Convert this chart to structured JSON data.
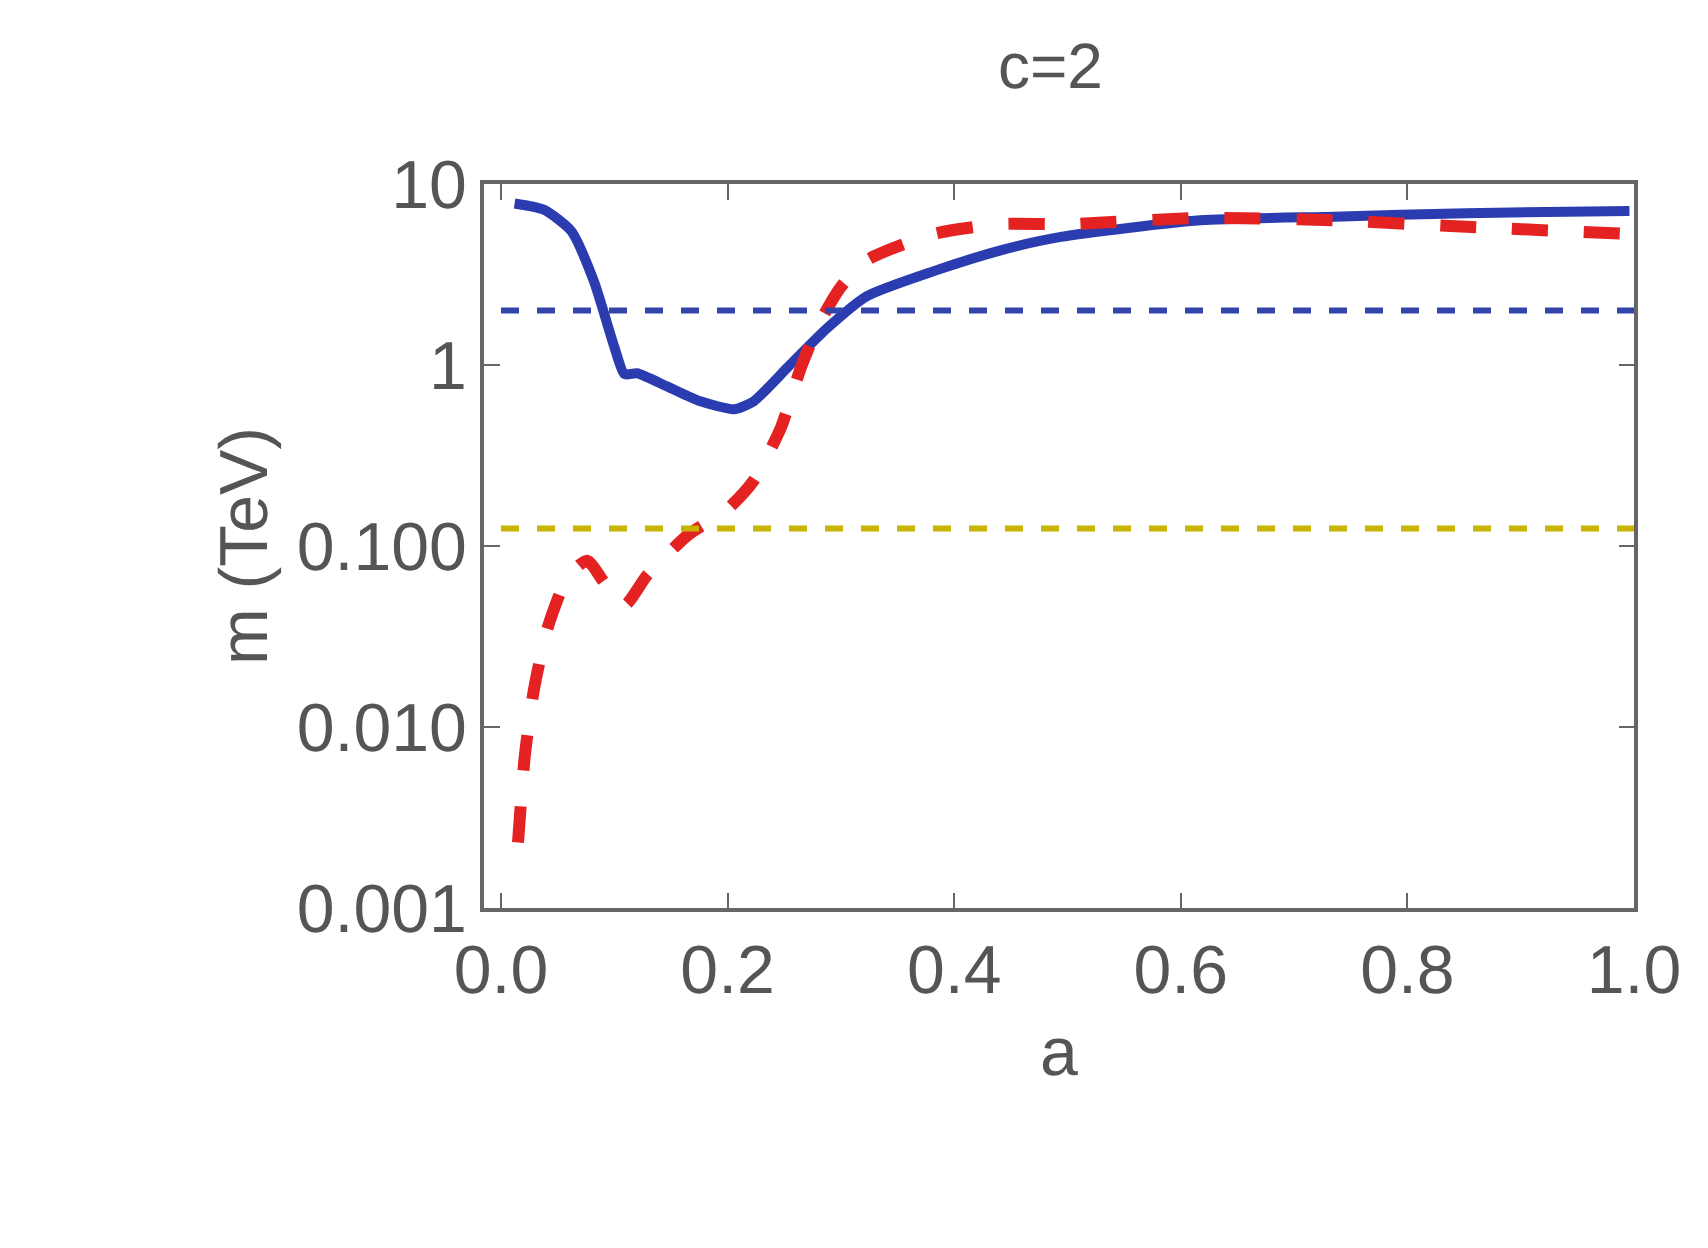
{
  "chart_data": {
    "type": "line",
    "title": "c=2",
    "xlabel": "a",
    "ylabel": "m (TeV)",
    "log": "y",
    "xlim": [
      -0.015,
      1.0
    ],
    "xticks": [
      {
        "value": 0,
        "label": "0.0"
      },
      {
        "value": 0.2,
        "label": "0.2"
      },
      {
        "value": 0.4,
        "label": "0.4"
      },
      {
        "value": 0.6,
        "label": "0.6"
      },
      {
        "value": 0.8,
        "label": "0.8"
      },
      {
        "value": 1,
        "label": "1.0"
      }
    ],
    "ylim": [
      0.001,
      10
    ],
    "yticks": [
      {
        "value": 0.001,
        "label": "0.001"
      },
      {
        "value": 0.01,
        "label": "0.010"
      },
      {
        "value": 0.1,
        "label": "0.100"
      },
      1,
      10
    ],
    "series": [
      {
        "color": "#2a3cb0",
        "line_style": "solid",
        "x": [
          0.012,
          0.038,
          0.062,
          0.082,
          0.1,
          0.109,
          0.12,
          0.147,
          0.176,
          0.206,
          0.223,
          0.253,
          0.288,
          0.323,
          0.382,
          0.441,
          0.494,
          0.617,
          0.735,
          0.852,
          0.996
        ],
        "values": [
          7.8,
          7.2,
          5.5,
          2.9,
          1.26,
          0.89,
          0.9,
          0.76,
          0.63,
          0.57,
          0.63,
          0.97,
          1.6,
          2.4,
          3.3,
          4.3,
          5.1,
          6.3,
          6.6,
          6.9,
          7.1
        ]
      },
      {
        "color": "#e52222",
        "line_style": "dashed",
        "x": [
          0.015,
          0.021,
          0.029,
          0.041,
          0.059,
          0.076,
          0.091,
          0.109,
          0.129,
          0.165,
          0.2,
          0.223,
          0.247,
          0.265,
          0.282,
          0.3,
          0.323,
          0.382,
          0.441,
          0.5,
          0.617,
          0.735,
          0.852,
          0.996
        ],
        "values": [
          0.0023,
          0.0069,
          0.016,
          0.035,
          0.068,
          0.083,
          0.063,
          0.047,
          0.069,
          0.115,
          0.16,
          0.23,
          0.45,
          0.98,
          1.75,
          2.7,
          3.8,
          5.3,
          6.0,
          6.0,
          6.5,
          6.3,
          5.8,
          5.3
        ]
      }
    ],
    "ref_lines": [
      {
        "axis": "y",
        "value": 2,
        "color": "#3344aa",
        "line_style": "dashed"
      },
      {
        "axis": "y",
        "value": 0.125,
        "color": "#c8b400",
        "line_style": "dashed"
      }
    ]
  }
}
